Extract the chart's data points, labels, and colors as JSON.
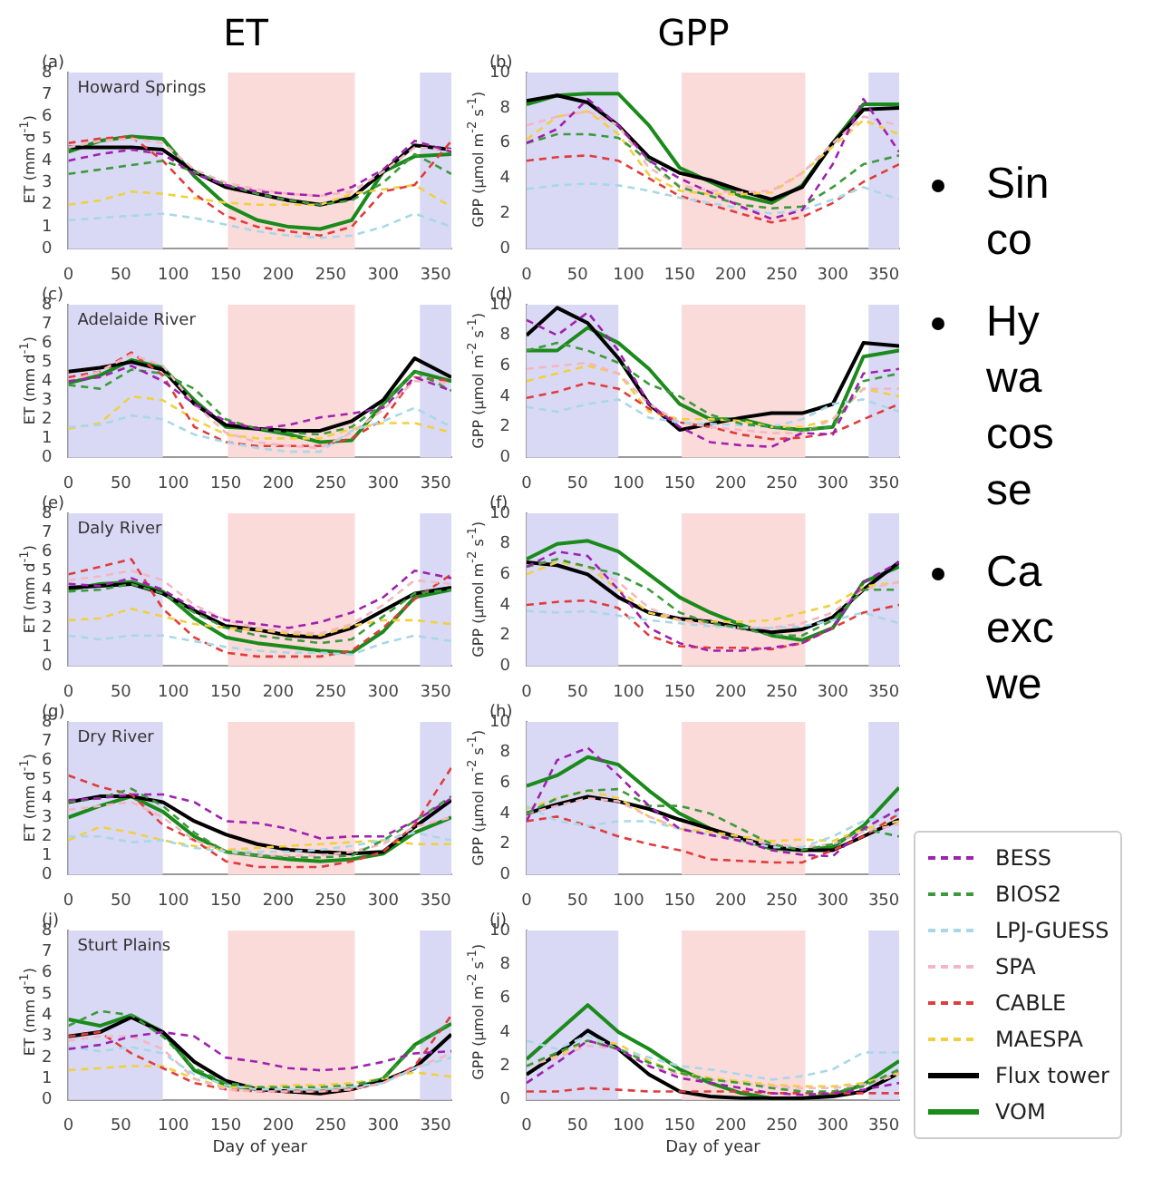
{
  "chart_data": [
    {
      "type": "line",
      "title": "ET",
      "annotations": [
        "(a)",
        "Howard Springs"
      ],
      "ylabel": "ET (mm d$^{-1}$)",
      "x": [
        0,
        30,
        60,
        90,
        120,
        150,
        180,
        210,
        240,
        270,
        300,
        330,
        365
      ],
      "xlim": [
        0,
        365
      ],
      "xticks": [
        0,
        50,
        100,
        150,
        200,
        250,
        300,
        350
      ],
      "ylim": [
        0,
        8
      ],
      "yticks": [
        0,
        1,
        2,
        3,
        4,
        5,
        6,
        7,
        8
      ],
      "marker": "none",
      "bands": [
        {
          "axis": "x",
          "from": 0,
          "to": 90,
          "color": "#d9d9f5"
        },
        {
          "axis": "x",
          "from": 152,
          "to": 273,
          "color": "#fbdada"
        },
        {
          "axis": "x",
          "from": 335,
          "to": 365,
          "color": "#d9d9f5"
        }
      ],
      "series": [
        {
          "color": "#a020b0",
          "line_style": "dashed",
          "values": [
            4.0,
            4.3,
            4.5,
            4.3,
            3.4,
            2.9,
            2.6,
            2.5,
            2.4,
            2.8,
            3.6,
            4.9,
            4.4
          ]
        },
        {
          "color": "#3c9a3c",
          "line_style": "dashed",
          "values": [
            3.4,
            3.6,
            3.8,
            4.0,
            3.5,
            2.9,
            2.5,
            2.2,
            2.0,
            2.2,
            3.0,
            4.3,
            3.4
          ]
        },
        {
          "color": "#a8d8e8",
          "line_style": "dashed",
          "values": [
            1.3,
            1.4,
            1.5,
            1.6,
            1.4,
            1.1,
            0.8,
            0.6,
            0.5,
            0.6,
            1.0,
            1.6,
            1.0
          ]
        },
        {
          "color": "#f4b6c2",
          "line_style": "dashed",
          "values": [
            4.6,
            4.9,
            5.0,
            4.8,
            3.6,
            3.0,
            2.7,
            2.5,
            2.4,
            2.6,
            3.5,
            4.6,
            4.5
          ]
        },
        {
          "color": "#e03c3c",
          "line_style": "dashed",
          "values": [
            4.8,
            5.0,
            5.1,
            4.0,
            2.5,
            1.5,
            1.0,
            0.8,
            0.6,
            1.0,
            2.6,
            2.9,
            4.9
          ]
        },
        {
          "color": "#f0d040",
          "line_style": "dashed",
          "values": [
            2.0,
            2.2,
            2.6,
            2.5,
            2.3,
            2.1,
            2.0,
            2.0,
            2.0,
            2.5,
            2.7,
            2.9,
            1.9
          ]
        },
        {
          "color": "#000000",
          "line_style": "solid",
          "values": [
            4.6,
            4.6,
            4.6,
            4.5,
            3.5,
            2.8,
            2.5,
            2.2,
            2.0,
            2.3,
            3.5,
            4.7,
            4.5
          ]
        },
        {
          "color": "#1a8a1a",
          "line_style": "solid",
          "values": [
            4.4,
            4.9,
            5.1,
            5.0,
            3.3,
            2.0,
            1.3,
            1.0,
            0.9,
            1.3,
            3.5,
            4.2,
            4.3
          ]
        }
      ]
    },
    {
      "type": "line",
      "title": "GPP",
      "annotations": [
        "(b)"
      ],
      "ylabel": "GPP (μmol m$^{-2}$ s$^{-1}$)",
      "x": [
        0,
        30,
        60,
        90,
        120,
        150,
        180,
        210,
        240,
        270,
        300,
        330,
        365
      ],
      "xlim": [
        0,
        365
      ],
      "xticks": [
        0,
        50,
        100,
        150,
        200,
        250,
        300,
        350
      ],
      "ylim": [
        0,
        10
      ],
      "yticks": [
        0,
        2,
        4,
        6,
        8,
        10
      ],
      "marker": "none",
      "bands": [
        {
          "axis": "x",
          "from": 0,
          "to": 90,
          "color": "#d9d9f5"
        },
        {
          "axis": "x",
          "from": 152,
          "to": 273,
          "color": "#fbdada"
        },
        {
          "axis": "x",
          "from": 335,
          "to": 365,
          "color": "#d9d9f5"
        }
      ],
      "series": [
        {
          "color": "#a020b0",
          "line_style": "dashed",
          "values": [
            6.0,
            6.8,
            8.5,
            7.0,
            5.0,
            4.0,
            3.2,
            2.4,
            1.7,
            2.2,
            4.8,
            8.5,
            5.5
          ]
        },
        {
          "color": "#3c9a3c",
          "line_style": "dashed",
          "values": [
            6.0,
            6.5,
            6.5,
            6.3,
            5.0,
            3.5,
            3.0,
            2.5,
            2.3,
            2.4,
            3.5,
            4.8,
            5.3
          ]
        },
        {
          "color": "#a8d8e8",
          "line_style": "dashed",
          "values": [
            3.4,
            3.6,
            3.7,
            3.6,
            3.3,
            2.9,
            2.6,
            2.3,
            2.0,
            2.2,
            2.8,
            3.5,
            2.8
          ]
        },
        {
          "color": "#f4b6c2",
          "line_style": "dashed",
          "values": [
            7.0,
            7.5,
            7.8,
            7.0,
            4.6,
            3.6,
            3.3,
            3.2,
            3.3,
            4.3,
            6.0,
            7.5,
            7.0
          ]
        },
        {
          "color": "#e03c3c",
          "line_style": "dashed",
          "values": [
            5.0,
            5.2,
            5.3,
            5.0,
            4.0,
            3.0,
            2.5,
            2.0,
            1.5,
            1.8,
            2.6,
            3.8,
            4.8
          ]
        },
        {
          "color": "#f0d040",
          "line_style": "dashed",
          "values": [
            6.2,
            7.5,
            7.8,
            6.5,
            4.2,
            3.3,
            3.1,
            3.1,
            3.2,
            4.3,
            5.8,
            7.3,
            6.5
          ]
        },
        {
          "color": "#000000",
          "line_style": "solid",
          "values": [
            8.4,
            8.7,
            8.3,
            7.0,
            5.2,
            4.3,
            3.9,
            3.3,
            2.8,
            3.5,
            6.0,
            7.9,
            8.0
          ]
        },
        {
          "color": "#1a8a1a",
          "line_style": "solid",
          "values": [
            8.2,
            8.7,
            8.8,
            8.8,
            7.0,
            4.6,
            3.8,
            3.0,
            2.6,
            3.6,
            6.0,
            8.2,
            8.2
          ]
        }
      ]
    },
    {
      "type": "line",
      "annotations": [
        "(c)",
        "Adelaide River"
      ],
      "ylabel": "ET (mm d$^{-1}$)",
      "x": [
        0,
        30,
        60,
        90,
        120,
        150,
        180,
        210,
        240,
        270,
        300,
        330,
        365
      ],
      "xlim": [
        0,
        365
      ],
      "xticks": [
        0,
        50,
        100,
        150,
        200,
        250,
        300,
        350
      ],
      "ylim": [
        0,
        8
      ],
      "yticks": [
        0,
        1,
        2,
        3,
        4,
        5,
        6,
        7,
        8
      ],
      "marker": "none",
      "bands": [
        {
          "axis": "x",
          "from": 0,
          "to": 90,
          "color": "#d9d9f5"
        },
        {
          "axis": "x",
          "from": 152,
          "to": 273,
          "color": "#fbdada"
        },
        {
          "axis": "x",
          "from": 335,
          "to": 365,
          "color": "#d9d9f5"
        }
      ],
      "series": [
        {
          "color": "#a020b0",
          "line_style": "dashed",
          "values": [
            4.0,
            4.2,
            4.8,
            4.0,
            2.8,
            1.9,
            1.5,
            1.7,
            2.1,
            2.3,
            2.6,
            4.2,
            3.5
          ]
        },
        {
          "color": "#3c9a3c",
          "line_style": "dashed",
          "values": [
            3.8,
            3.6,
            4.6,
            4.4,
            3.6,
            2.0,
            1.5,
            1.3,
            1.2,
            1.6,
            2.8,
            4.5,
            3.5
          ]
        },
        {
          "color": "#a8d8e8",
          "line_style": "dashed",
          "values": [
            1.6,
            1.7,
            2.2,
            2.0,
            1.2,
            0.8,
            0.5,
            0.3,
            0.3,
            1.4,
            1.9,
            2.6,
            1.6
          ]
        },
        {
          "color": "#f4b6c2",
          "line_style": "dashed",
          "values": [
            4.0,
            4.5,
            5.4,
            4.8,
            2.8,
            1.3,
            0.8,
            0.6,
            0.5,
            1.3,
            2.5,
            4.0,
            3.9
          ]
        },
        {
          "color": "#e03c3c",
          "line_style": "dashed",
          "values": [
            4.2,
            4.5,
            5.5,
            4.3,
            1.6,
            0.8,
            0.6,
            0.6,
            0.6,
            1.0,
            2.0,
            4.2,
            4.0
          ]
        },
        {
          "color": "#f0d040",
          "line_style": "dashed",
          "values": [
            1.5,
            1.8,
            3.2,
            3.0,
            2.0,
            1.2,
            1.0,
            1.0,
            1.0,
            1.5,
            1.8,
            1.8,
            1.3
          ]
        },
        {
          "color": "#000000",
          "line_style": "solid",
          "values": [
            4.5,
            4.7,
            5.0,
            4.6,
            2.8,
            1.7,
            1.5,
            1.4,
            1.4,
            1.9,
            3.0,
            5.2,
            4.2
          ]
        },
        {
          "color": "#1a8a1a",
          "line_style": "solid",
          "values": [
            3.9,
            4.3,
            5.1,
            4.7,
            3.0,
            1.6,
            1.5,
            1.2,
            0.8,
            0.9,
            2.8,
            4.5,
            4.0
          ]
        }
      ]
    },
    {
      "type": "line",
      "annotations": [
        "(d)"
      ],
      "ylabel": "GPP (μmol m$^{-2}$ s$^{-1}$)",
      "x": [
        0,
        30,
        60,
        90,
        120,
        150,
        180,
        210,
        240,
        270,
        300,
        330,
        365
      ],
      "xlim": [
        0,
        365
      ],
      "xticks": [
        0,
        50,
        100,
        150,
        200,
        250,
        300,
        350
      ],
      "ylim": [
        0,
        10
      ],
      "yticks": [
        0,
        2,
        4,
        6,
        8,
        10
      ],
      "marker": "none",
      "bands": [
        {
          "axis": "x",
          "from": 0,
          "to": 90,
          "color": "#d9d9f5"
        },
        {
          "axis": "x",
          "from": 152,
          "to": 273,
          "color": "#fbdada"
        },
        {
          "axis": "x",
          "from": 335,
          "to": 365,
          "color": "#d9d9f5"
        }
      ],
      "series": [
        {
          "color": "#a020b0",
          "line_style": "dashed",
          "values": [
            9.0,
            8.0,
            9.5,
            7.0,
            3.5,
            2.0,
            1.0,
            0.8,
            0.7,
            1.6,
            1.5,
            5.5,
            5.8
          ]
        },
        {
          "color": "#3c9a3c",
          "line_style": "dashed",
          "values": [
            7.0,
            7.5,
            7.0,
            6.2,
            4.8,
            4.0,
            2.8,
            2.2,
            2.0,
            1.8,
            2.0,
            5.0,
            5.5
          ]
        },
        {
          "color": "#a8d8e8",
          "line_style": "dashed",
          "values": [
            3.3,
            3.0,
            3.5,
            3.8,
            2.6,
            2.3,
            2.2,
            2.1,
            2.0,
            2.5,
            3.5,
            3.8,
            3.0
          ]
        },
        {
          "color": "#f4b6c2",
          "line_style": "dashed",
          "values": [
            5.8,
            6.0,
            6.2,
            5.5,
            3.5,
            2.3,
            2.0,
            1.8,
            1.6,
            1.6,
            2.5,
            4.5,
            4.5
          ]
        },
        {
          "color": "#e03c3c",
          "line_style": "dashed",
          "values": [
            3.9,
            4.3,
            4.9,
            4.5,
            3.2,
            2.3,
            2.0,
            1.5,
            1.2,
            1.3,
            1.6,
            2.5,
            3.5
          ]
        },
        {
          "color": "#f0d040",
          "line_style": "dashed",
          "values": [
            5.0,
            5.5,
            6.0,
            5.5,
            3.0,
            2.5,
            2.5,
            2.4,
            2.0,
            2.0,
            2.5,
            4.5,
            4.0
          ]
        },
        {
          "color": "#000000",
          "line_style": "solid",
          "values": [
            8.0,
            9.8,
            8.8,
            6.5,
            3.5,
            1.8,
            2.2,
            2.6,
            2.9,
            2.9,
            3.5,
            7.5,
            7.3
          ]
        },
        {
          "color": "#1a8a1a",
          "line_style": "solid",
          "values": [
            7.0,
            7.0,
            8.5,
            7.5,
            5.8,
            3.5,
            2.5,
            2.5,
            2.0,
            1.8,
            2.0,
            6.6,
            7.0
          ]
        }
      ]
    },
    {
      "type": "line",
      "annotations": [
        "(e)",
        "Daly River"
      ],
      "ylabel": "ET (mm d$^{-1}$)",
      "x": [
        0,
        30,
        60,
        90,
        120,
        150,
        180,
        210,
        240,
        270,
        300,
        330,
        365
      ],
      "xlim": [
        0,
        365
      ],
      "xticks": [
        0,
        50,
        100,
        150,
        200,
        250,
        300,
        350
      ],
      "ylim": [
        0,
        8
      ],
      "yticks": [
        0,
        1,
        2,
        3,
        4,
        5,
        6,
        7,
        8
      ],
      "marker": "none",
      "bands": [
        {
          "axis": "x",
          "from": 0,
          "to": 90,
          "color": "#d9d9f5"
        },
        {
          "axis": "x",
          "from": 152,
          "to": 273,
          "color": "#fbdada"
        },
        {
          "axis": "x",
          "from": 335,
          "to": 365,
          "color": "#d9d9f5"
        }
      ],
      "series": [
        {
          "color": "#a020b0",
          "line_style": "dashed",
          "values": [
            4.3,
            4.2,
            4.6,
            4.0,
            3.0,
            2.4,
            2.2,
            2.0,
            2.3,
            2.8,
            3.6,
            5.0,
            4.6
          ]
        },
        {
          "color": "#3c9a3c",
          "line_style": "dashed",
          "values": [
            3.9,
            4.0,
            4.3,
            3.8,
            2.8,
            2.0,
            1.6,
            1.4,
            1.2,
            1.4,
            2.6,
            3.8,
            4.0
          ]
        },
        {
          "color": "#a8d8e8",
          "line_style": "dashed",
          "values": [
            1.6,
            1.4,
            1.6,
            1.6,
            1.3,
            1.0,
            0.8,
            0.7,
            0.7,
            0.6,
            1.2,
            1.6,
            1.3
          ]
        },
        {
          "color": "#f4b6c2",
          "line_style": "dashed",
          "values": [
            4.5,
            4.7,
            5.0,
            4.5,
            3.2,
            2.4,
            2.0,
            1.8,
            1.7,
            2.2,
            3.2,
            4.5,
            4.3
          ]
        },
        {
          "color": "#e03c3c",
          "line_style": "dashed",
          "values": [
            4.8,
            5.2,
            5.6,
            3.0,
            1.5,
            0.7,
            0.5,
            0.5,
            0.5,
            0.8,
            2.0,
            3.5,
            4.8
          ]
        },
        {
          "color": "#f0d040",
          "line_style": "dashed",
          "values": [
            2.4,
            2.5,
            3.0,
            2.6,
            2.2,
            2.0,
            1.9,
            1.7,
            1.6,
            2.1,
            2.4,
            2.4,
            2.2
          ]
        },
        {
          "color": "#000000",
          "line_style": "solid",
          "values": [
            4.1,
            4.2,
            4.3,
            3.8,
            2.9,
            2.1,
            1.9,
            1.6,
            1.5,
            2.0,
            2.9,
            3.8,
            4.1
          ]
        },
        {
          "color": "#1a8a1a",
          "line_style": "solid",
          "values": [
            4.0,
            4.3,
            4.4,
            3.9,
            2.5,
            1.5,
            1.2,
            1.0,
            0.8,
            0.7,
            1.8,
            3.6,
            4.0
          ]
        }
      ]
    },
    {
      "type": "line",
      "annotations": [
        "(f)"
      ],
      "ylabel": "GPP (μmol m$^{-2}$ s$^{-1}$)",
      "x": [
        0,
        30,
        60,
        90,
        120,
        150,
        180,
        210,
        240,
        270,
        300,
        330,
        365
      ],
      "xlim": [
        0,
        365
      ],
      "xticks": [
        0,
        50,
        100,
        150,
        200,
        250,
        300,
        350
      ],
      "ylim": [
        0,
        10
      ],
      "yticks": [
        0,
        2,
        4,
        6,
        8,
        10
      ],
      "marker": "none",
      "bands": [
        {
          "axis": "x",
          "from": 0,
          "to": 90,
          "color": "#d9d9f5"
        },
        {
          "axis": "x",
          "from": 152,
          "to": 273,
          "color": "#fbdada"
        },
        {
          "axis": "x",
          "from": 335,
          "to": 365,
          "color": "#d9d9f5"
        }
      ],
      "series": [
        {
          "color": "#a020b0",
          "line_style": "dashed",
          "values": [
            6.5,
            7.5,
            7.2,
            5.0,
            2.5,
            1.5,
            1.0,
            1.0,
            1.2,
            1.5,
            2.5,
            5.5,
            6.8
          ]
        },
        {
          "color": "#3c9a3c",
          "line_style": "dashed",
          "values": [
            6.5,
            7.0,
            6.5,
            6.0,
            5.0,
            3.5,
            2.8,
            2.5,
            2.0,
            2.0,
            3.0,
            5.0,
            5.0
          ]
        },
        {
          "color": "#a8d8e8",
          "line_style": "dashed",
          "values": [
            3.6,
            3.5,
            3.6,
            3.3,
            3.0,
            2.8,
            2.6,
            2.5,
            2.5,
            2.6,
            3.0,
            3.5,
            2.8
          ]
        },
        {
          "color": "#f4b6c2",
          "line_style": "dashed",
          "values": [
            6.5,
            7.0,
            6.5,
            5.5,
            3.8,
            3.0,
            2.7,
            2.5,
            2.5,
            2.8,
            3.5,
            5.0,
            5.5
          ]
        },
        {
          "color": "#e03c3c",
          "line_style": "dashed",
          "values": [
            4.0,
            4.2,
            4.3,
            3.8,
            2.0,
            1.3,
            1.2,
            1.2,
            1.1,
            1.5,
            2.5,
            3.5,
            4.0
          ]
        },
        {
          "color": "#f0d040",
          "line_style": "dashed",
          "values": [
            6.0,
            6.8,
            6.5,
            5.0,
            3.5,
            3.0,
            2.9,
            2.9,
            3.0,
            3.5,
            4.0,
            5.2,
            5.5
          ]
        },
        {
          "color": "#000000",
          "line_style": "solid",
          "values": [
            6.8,
            6.6,
            6.0,
            4.5,
            3.5,
            3.1,
            2.9,
            2.5,
            2.2,
            2.4,
            3.2,
            5.0,
            6.8
          ]
        },
        {
          "color": "#1a8a1a",
          "line_style": "solid",
          "values": [
            7.0,
            8.0,
            8.2,
            7.5,
            6.0,
            4.5,
            3.5,
            2.7,
            2.0,
            1.7,
            2.5,
            5.5,
            6.5
          ]
        }
      ]
    },
    {
      "type": "line",
      "annotations": [
        "(g)",
        "Dry River"
      ],
      "ylabel": "ET (mm d$^{-1}$)",
      "x": [
        0,
        30,
        60,
        90,
        120,
        150,
        180,
        210,
        240,
        270,
        300,
        330,
        365
      ],
      "xlim": [
        0,
        365
      ],
      "xticks": [
        0,
        50,
        100,
        150,
        200,
        250,
        300,
        350
      ],
      "ylim": [
        0,
        8
      ],
      "yticks": [
        0,
        1,
        2,
        3,
        4,
        5,
        6,
        7,
        8
      ],
      "marker": "none",
      "bands": [
        {
          "axis": "x",
          "from": 0,
          "to": 90,
          "color": "#d9d9f5"
        },
        {
          "axis": "x",
          "from": 152,
          "to": 273,
          "color": "#fbdada"
        },
        {
          "axis": "x",
          "from": 335,
          "to": 365,
          "color": "#d9d9f5"
        }
      ],
      "series": [
        {
          "color": "#a020b0",
          "line_style": "dashed",
          "values": [
            3.9,
            4.0,
            4.2,
            4.2,
            3.8,
            2.8,
            2.7,
            2.4,
            1.9,
            2.0,
            2.0,
            2.8,
            4.0
          ]
        },
        {
          "color": "#3c9a3c",
          "line_style": "dashed",
          "values": [
            3.8,
            4.0,
            4.5,
            3.6,
            2.2,
            1.2,
            1.0,
            0.9,
            0.9,
            1.0,
            1.8,
            2.8,
            4.1
          ]
        },
        {
          "color": "#a8d8e8",
          "line_style": "dashed",
          "values": [
            2.0,
            2.0,
            1.7,
            1.8,
            1.4,
            1.2,
            1.2,
            1.2,
            1.3,
            1.5,
            1.8,
            2.2,
            1.8
          ]
        },
        {
          "color": "#f4b6c2",
          "line_style": "dashed",
          "values": [
            3.4,
            3.6,
            3.8,
            3.0,
            1.8,
            1.2,
            1.0,
            1.0,
            1.0,
            1.2,
            1.6,
            2.5,
            3.0
          ]
        },
        {
          "color": "#e03c3c",
          "line_style": "dashed",
          "values": [
            5.2,
            4.6,
            4.2,
            2.6,
            1.8,
            0.7,
            0.4,
            0.4,
            0.4,
            0.7,
            1.2,
            2.6,
            5.6
          ]
        },
        {
          "color": "#f0d040",
          "line_style": "dashed",
          "values": [
            1.8,
            2.5,
            2.2,
            1.8,
            1.5,
            1.3,
            1.4,
            1.5,
            1.6,
            1.7,
            1.8,
            1.6,
            1.6
          ]
        },
        {
          "color": "#000000",
          "line_style": "solid",
          "values": [
            3.8,
            4.1,
            4.1,
            3.8,
            2.8,
            2.1,
            1.6,
            1.3,
            1.2,
            1.1,
            1.2,
            2.5,
            3.9
          ]
        },
        {
          "color": "#1a8a1a",
          "line_style": "solid",
          "values": [
            3.0,
            3.6,
            4.1,
            3.3,
            2.0,
            1.2,
            1.0,
            0.8,
            0.7,
            0.8,
            1.1,
            2.2,
            3.0
          ]
        }
      ]
    },
    {
      "type": "line",
      "annotations": [
        "(h)"
      ],
      "ylabel": "GPP (μmol m$^{-2}$ s$^{-1}$)",
      "x": [
        0,
        30,
        60,
        90,
        120,
        150,
        180,
        210,
        240,
        270,
        300,
        330,
        365
      ],
      "xlim": [
        0,
        365
      ],
      "xticks": [
        0,
        50,
        100,
        150,
        200,
        250,
        300,
        350
      ],
      "ylim": [
        0,
        10
      ],
      "yticks": [
        0,
        2,
        4,
        6,
        8,
        10
      ],
      "marker": "none",
      "bands": [
        {
          "axis": "x",
          "from": 0,
          "to": 90,
          "color": "#d9d9f5"
        },
        {
          "axis": "x",
          "from": 152,
          "to": 273,
          "color": "#fbdada"
        },
        {
          "axis": "x",
          "from": 335,
          "to": 365,
          "color": "#d9d9f5"
        }
      ],
      "series": [
        {
          "color": "#a020b0",
          "line_style": "dashed",
          "values": [
            3.5,
            7.5,
            8.3,
            6.5,
            4.5,
            3.0,
            2.6,
            2.2,
            1.6,
            1.3,
            1.2,
            3.0,
            4.3
          ]
        },
        {
          "color": "#3c9a3c",
          "line_style": "dashed",
          "values": [
            4.0,
            5.0,
            5.5,
            5.6,
            4.5,
            4.5,
            4.0,
            3.0,
            2.0,
            1.6,
            2.0,
            3.0,
            2.5
          ]
        },
        {
          "color": "#a8d8e8",
          "line_style": "dashed",
          "values": [
            4.5,
            3.5,
            3.2,
            3.5,
            3.5,
            3.0,
            2.6,
            2.2,
            1.8,
            1.8,
            2.5,
            3.5,
            4.0
          ]
        },
        {
          "color": "#f4b6c2",
          "line_style": "dashed",
          "values": [
            4.0,
            4.5,
            5.0,
            4.8,
            3.8,
            3.0,
            2.6,
            2.3,
            2.0,
            1.8,
            2.0,
            2.8,
            3.3
          ]
        },
        {
          "color": "#e03c3c",
          "line_style": "dashed",
          "values": [
            3.5,
            3.8,
            3.2,
            2.5,
            2.0,
            1.6,
            1.0,
            0.9,
            0.8,
            0.8,
            1.6,
            2.5,
            4.0
          ]
        },
        {
          "color": "#f0d040",
          "line_style": "dashed",
          "values": [
            4.3,
            5.0,
            5.5,
            5.0,
            3.8,
            3.0,
            2.8,
            2.5,
            2.2,
            2.3,
            2.2,
            3.0,
            3.5
          ]
        },
        {
          "color": "#000000",
          "line_style": "solid",
          "values": [
            4.0,
            4.6,
            5.1,
            4.8,
            4.3,
            3.6,
            3.0,
            2.4,
            1.8,
            1.6,
            1.6,
            2.5,
            3.6
          ]
        },
        {
          "color": "#1a8a1a",
          "line_style": "solid",
          "values": [
            5.8,
            6.5,
            7.7,
            7.2,
            5.5,
            4.0,
            3.0,
            2.3,
            1.7,
            1.6,
            1.8,
            3.2,
            5.7
          ]
        }
      ]
    },
    {
      "type": "line",
      "annotations": [
        "(i)",
        "Sturt Plains"
      ],
      "xlabel": "Day of year",
      "ylabel": "ET (mm d$^{-1}$)",
      "x": [
        0,
        30,
        60,
        90,
        120,
        150,
        180,
        210,
        240,
        270,
        300,
        330,
        365
      ],
      "xlim": [
        0,
        365
      ],
      "xticks": [
        0,
        50,
        100,
        150,
        200,
        250,
        300,
        350
      ],
      "ylim": [
        0,
        8
      ],
      "yticks": [
        0,
        1,
        2,
        3,
        4,
        5,
        6,
        7,
        8
      ],
      "marker": "none",
      "bands": [
        {
          "axis": "x",
          "from": 0,
          "to": 90,
          "color": "#d9d9f5"
        },
        {
          "axis": "x",
          "from": 152,
          "to": 273,
          "color": "#fbdada"
        },
        {
          "axis": "x",
          "from": 335,
          "to": 365,
          "color": "#d9d9f5"
        }
      ],
      "series": [
        {
          "color": "#a020b0",
          "line_style": "dashed",
          "values": [
            2.4,
            2.6,
            3.0,
            3.2,
            3.0,
            2.0,
            1.8,
            1.5,
            1.4,
            1.5,
            1.8,
            2.2,
            2.3
          ]
        },
        {
          "color": "#3c9a3c",
          "line_style": "dashed",
          "values": [
            3.5,
            4.2,
            4.0,
            3.0,
            1.5,
            0.8,
            0.6,
            0.6,
            0.6,
            0.7,
            1.0,
            2.5,
            3.7
          ]
        },
        {
          "color": "#a8d8e8",
          "line_style": "dashed",
          "values": [
            2.5,
            2.3,
            2.5,
            2.2,
            1.2,
            0.7,
            0.5,
            0.5,
            0.5,
            0.6,
            0.8,
            1.5,
            2.0
          ]
        },
        {
          "color": "#f4b6c2",
          "line_style": "dashed",
          "values": [
            2.8,
            3.0,
            3.0,
            2.4,
            1.0,
            0.5,
            0.4,
            0.4,
            0.4,
            0.5,
            0.8,
            1.5,
            2.2
          ]
        },
        {
          "color": "#e03c3c",
          "line_style": "dashed",
          "values": [
            3.0,
            3.2,
            2.2,
            1.5,
            0.8,
            0.5,
            0.4,
            0.4,
            0.4,
            0.5,
            0.8,
            1.6,
            4.0
          ]
        },
        {
          "color": "#f0d040",
          "line_style": "dashed",
          "values": [
            1.4,
            1.5,
            1.6,
            1.6,
            1.0,
            0.6,
            0.6,
            0.7,
            0.7,
            0.8,
            1.0,
            1.3,
            1.1
          ]
        },
        {
          "color": "#000000",
          "line_style": "solid",
          "values": [
            3.0,
            3.2,
            3.9,
            3.2,
            1.8,
            0.9,
            0.5,
            0.4,
            0.3,
            0.5,
            0.9,
            1.5,
            3.1
          ]
        },
        {
          "color": "#1a8a1a",
          "line_style": "solid",
          "values": [
            3.8,
            3.5,
            4.0,
            3.2,
            1.4,
            0.7,
            0.5,
            0.4,
            0.4,
            0.5,
            1.0,
            2.6,
            3.6
          ]
        }
      ]
    },
    {
      "type": "line",
      "annotations": [
        "(j)"
      ],
      "xlabel": "Day of year",
      "ylabel": "GPP (μmol m$^{-2}$ s$^{-1}$)",
      "legend": "right",
      "x": [
        0,
        30,
        60,
        90,
        120,
        150,
        180,
        210,
        240,
        270,
        300,
        330,
        365
      ],
      "xlim": [
        0,
        365
      ],
      "xticks": [
        0,
        50,
        100,
        150,
        200,
        250,
        300,
        350
      ],
      "ylim": [
        0,
        10
      ],
      "yticks": [
        0,
        2,
        4,
        6,
        8,
        10
      ],
      "marker": "none",
      "bands": [
        {
          "axis": "x",
          "from": 0,
          "to": 90,
          "color": "#d9d9f5"
        },
        {
          "axis": "x",
          "from": 152,
          "to": 273,
          "color": "#fbdada"
        },
        {
          "axis": "x",
          "from": 335,
          "to": 365,
          "color": "#d9d9f5"
        }
      ],
      "series": [
        {
          "name": "BESS",
          "color": "#a020b0",
          "line_style": "dashed",
          "values": [
            1.0,
            2.2,
            3.5,
            3.0,
            2.0,
            1.3,
            1.0,
            0.7,
            0.4,
            0.3,
            0.4,
            0.6,
            1.0
          ]
        },
        {
          "name": "BIOS2",
          "color": "#3c9a3c",
          "line_style": "dashed",
          "values": [
            2.0,
            2.8,
            3.5,
            3.0,
            2.2,
            1.6,
            1.2,
            1.0,
            0.7,
            0.5,
            0.5,
            0.8,
            1.8
          ]
        },
        {
          "name": "LPJ-GUESS",
          "color": "#a8d8e8",
          "line_style": "dashed",
          "values": [
            3.5,
            3.0,
            3.8,
            3.0,
            2.5,
            2.0,
            1.8,
            1.5,
            1.2,
            1.4,
            1.8,
            2.8,
            2.8
          ]
        },
        {
          "name": "SPA",
          "color": "#f4b6c2",
          "line_style": "dashed",
          "values": [
            2.0,
            2.5,
            3.2,
            3.0,
            2.0,
            1.5,
            1.2,
            1.0,
            0.8,
            0.7,
            0.7,
            0.9,
            1.5
          ]
        },
        {
          "name": "CABLE",
          "color": "#e03c3c",
          "line_style": "dashed",
          "values": [
            0.5,
            0.5,
            0.7,
            0.6,
            0.5,
            0.5,
            0.5,
            0.5,
            0.4,
            0.4,
            0.4,
            0.4,
            0.4
          ]
        },
        {
          "name": "MAESPA",
          "color": "#f0d040",
          "line_style": "dashed",
          "values": [
            2.0,
            2.6,
            3.5,
            3.3,
            2.3,
            1.6,
            1.3,
            1.1,
            0.9,
            0.8,
            0.8,
            1.0,
            1.6
          ]
        },
        {
          "name": "Flux tower",
          "color": "#000000",
          "line_style": "solid",
          "values": [
            1.5,
            2.7,
            4.1,
            3.0,
            1.5,
            0.5,
            0.2,
            0.1,
            0.1,
            0.1,
            0.2,
            0.5,
            1.6
          ]
        },
        {
          "name": "VOM",
          "color": "#1a8a1a",
          "line_style": "solid",
          "values": [
            2.4,
            4.0,
            5.6,
            4.0,
            3.0,
            1.8,
            1.0,
            0.4,
            0.1,
            0.1,
            0.3,
            0.9,
            2.3
          ]
        }
      ]
    },
    {
      "type": "other",
      "annotations": [
        "Sin\nco",
        "Hy\nwa\ncos\nse",
        "Ca\nexc\nwe"
      ]
    }
  ]
}
